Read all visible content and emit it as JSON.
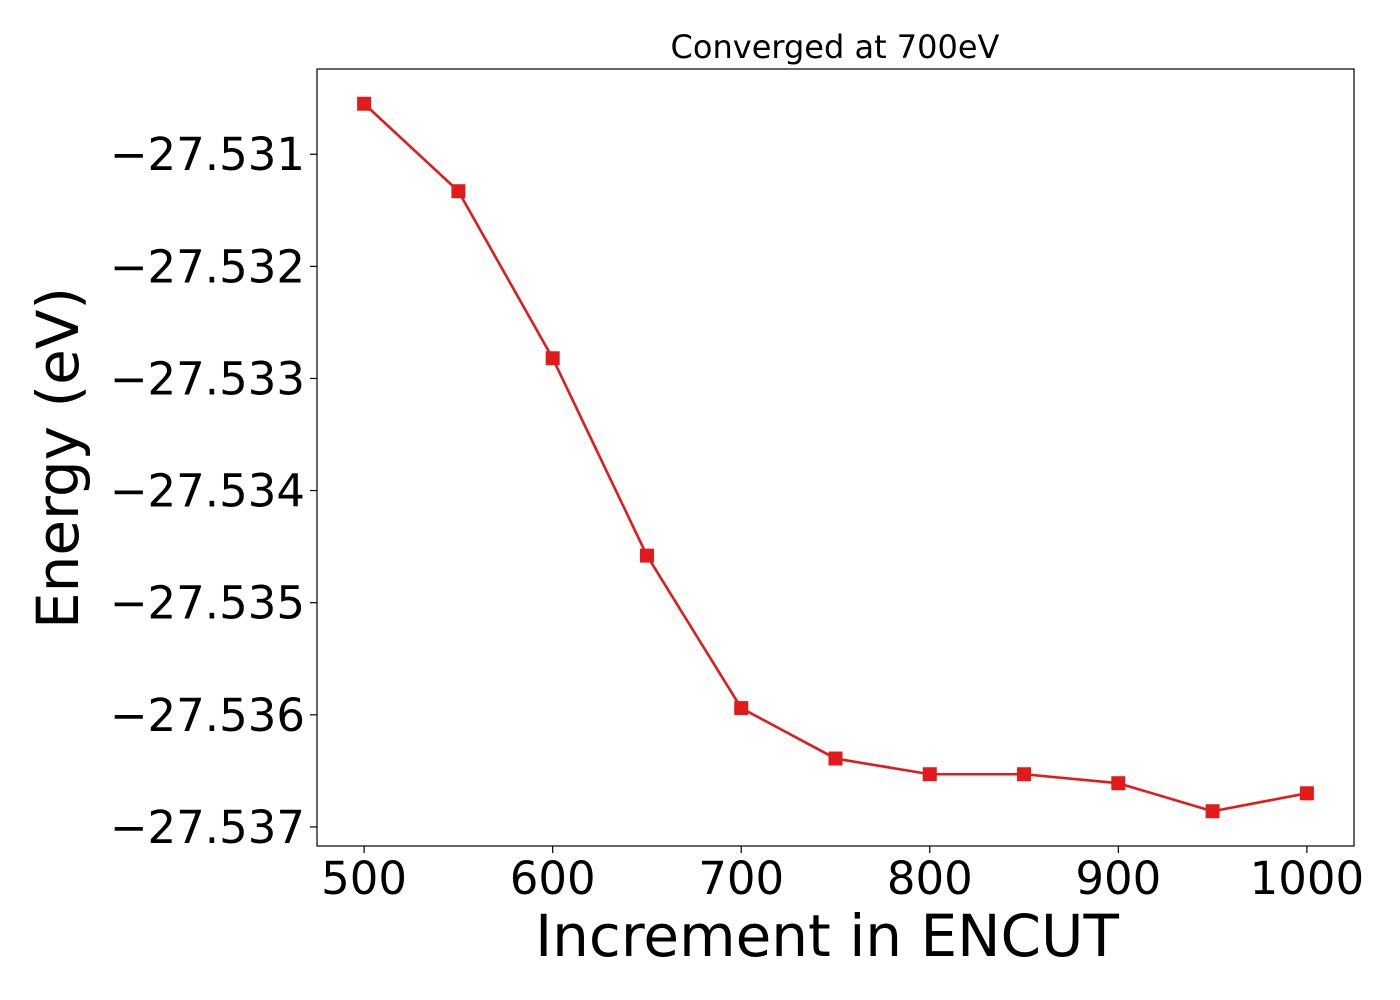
{
  "chart_data": {
    "type": "line",
    "title": "Converged at 700eV",
    "xlabel": "Increment in ENCUT",
    "ylabel": "Energy (eV)",
    "x": [
      500,
      550,
      600,
      650,
      700,
      750,
      800,
      850,
      900,
      950,
      1000
    ],
    "xticks": [
      500,
      600,
      700,
      800,
      900,
      1000
    ],
    "xtick_labels": [
      "500",
      "600",
      "700",
      "800",
      "900",
      "1000"
    ],
    "yticks": [
      -27.531,
      -27.532,
      -27.533,
      -27.534,
      -27.535,
      -27.536,
      -27.537
    ],
    "ytick_labels": [
      "−27.531",
      "−27.532",
      "−27.533",
      "−27.534",
      "−27.535",
      "−27.536",
      "−27.537"
    ],
    "xlim": [
      475,
      1025
    ],
    "ylim": [
      -27.53717,
      -27.53024
    ],
    "grid": false,
    "series": [
      {
        "name": "Energy",
        "color": "#e31a1c",
        "marker": "square",
        "values": [
          -27.53055,
          -27.53133,
          -27.53282,
          -27.53458,
          -27.53594,
          -27.53639,
          -27.53653,
          -27.53653,
          -27.53661,
          -27.53686,
          -27.5367
        ]
      }
    ]
  }
}
